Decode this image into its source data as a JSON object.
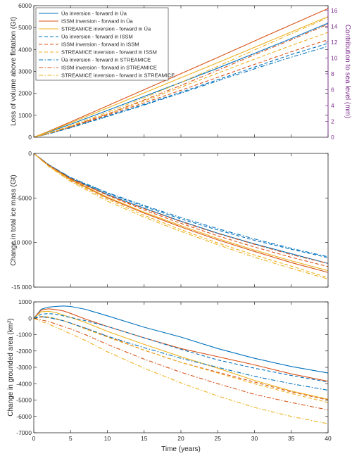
{
  "colors": {
    "ua": "#0072bd",
    "issm": "#d95319",
    "streamice": "#edb120",
    "sealevel_axis": "#7e2f8e"
  },
  "chart_data": [
    {
      "type": "line",
      "panel": "top",
      "xlabel": "",
      "ylabel": "Loss of volume above flotation (Gt)",
      "xlim": [
        0,
        40
      ],
      "ylim": [
        0,
        6000
      ],
      "xticks": [
        0,
        5,
        10,
        15,
        20,
        25,
        30,
        35,
        40
      ],
      "yticks": [
        0,
        1000,
        2000,
        3000,
        4000,
        5000,
        6000
      ],
      "ytick_labels": [
        "0",
        "1000",
        "2000",
        "3000",
        "4000",
        "5000",
        "6000"
      ],
      "y2label": "Contribution to sea level (mm)",
      "y2lim": [
        0,
        16.6
      ],
      "y2ticks": [
        0,
        2,
        4,
        6,
        8,
        10,
        12,
        14,
        16
      ],
      "legend_placement": "top-left",
      "x": [
        0,
        2,
        5,
        10,
        15,
        20,
        25,
        30,
        35,
        40
      ],
      "series": [
        {
          "name": "Úa inversion - forward in Úa",
          "color": "ua",
          "dash": "solid",
          "values": [
            0,
            230,
            590,
            1220,
            1860,
            2500,
            3150,
            3820,
            4500,
            5200
          ]
        },
        {
          "name": "ISSM inversion - forward in Úa",
          "color": "issm",
          "dash": "solid",
          "values": [
            0,
            270,
            700,
            1430,
            2170,
            2900,
            3640,
            4390,
            5130,
            5870
          ]
        },
        {
          "name": "STREAMICE inversion - forward in Úa",
          "color": "streamice",
          "dash": "solid",
          "values": [
            0,
            250,
            650,
            1330,
            2020,
            2710,
            3400,
            4100,
            4800,
            5500
          ]
        },
        {
          "name": "Úa inversion - forward in ISSM",
          "color": "ua",
          "dash": "dashed",
          "values": [
            0,
            160,
            450,
            970,
            1500,
            2050,
            2620,
            3200,
            3770,
            4280
          ]
        },
        {
          "name": "ISSM inversion - forward in ISSM",
          "color": "issm",
          "dash": "dashed",
          "values": [
            0,
            170,
            470,
            1010,
            1570,
            2140,
            2730,
            3320,
            3900,
            4450
          ]
        },
        {
          "name": "STREAMICE inversion - forward in ISSM",
          "color": "streamice",
          "dash": "dashed",
          "values": [
            0,
            180,
            490,
            1060,
            1650,
            2280,
            2920,
            3560,
            4180,
            4780
          ]
        },
        {
          "name": "Úa inversion - forward in STREAMICE",
          "color": "ua",
          "dash": "dashdot",
          "values": [
            0,
            150,
            430,
            940,
            1470,
            2010,
            2570,
            3120,
            3650,
            4150
          ]
        },
        {
          "name": "ISSM inversion - forward in STREAMICE",
          "color": "issm",
          "dash": "dashdot",
          "values": [
            0,
            170,
            480,
            1060,
            1700,
            2360,
            3050,
            3760,
            4440,
            5150
          ]
        },
        {
          "name": "STREAMICE inversion - forward in STREAMICE",
          "color": "streamice",
          "dash": "dashdot",
          "values": [
            0,
            180,
            520,
            1140,
            1800,
            2500,
            3230,
            3980,
            4720,
            5450
          ]
        }
      ]
    },
    {
      "type": "line",
      "panel": "middle",
      "xlabel": "",
      "ylabel": "Change in total ice mass (Gt)",
      "xlim": [
        0,
        40
      ],
      "ylim": [
        -15000,
        0
      ],
      "xticks": [
        0,
        5,
        10,
        15,
        20,
        25,
        30,
        35,
        40
      ],
      "yticks": [
        -15000,
        -10000,
        -5000,
        0
      ],
      "ytick_labels": [
        "-15 000",
        "-10 000",
        "-5000",
        "0"
      ],
      "x": [
        0,
        2,
        5,
        10,
        15,
        20,
        25,
        30,
        35,
        40
      ],
      "series": [
        {
          "color": "ua",
          "dash": "solid",
          "values": [
            0,
            -1300,
            -2800,
            -4600,
            -6150,
            -7600,
            -8950,
            -10150,
            -11250,
            -12350
          ]
        },
        {
          "color": "issm",
          "dash": "solid",
          "values": [
            0,
            -1350,
            -2950,
            -5000,
            -6700,
            -8250,
            -9700,
            -11000,
            -12250,
            -13350
          ]
        },
        {
          "color": "streamice",
          "dash": "solid",
          "values": [
            0,
            -1350,
            -2900,
            -4900,
            -6600,
            -8100,
            -9550,
            -10850,
            -12050,
            -13150
          ]
        },
        {
          "color": "ua",
          "dash": "dashed",
          "values": [
            0,
            -1250,
            -2750,
            -4450,
            -5950,
            -7350,
            -8600,
            -9750,
            -10750,
            -11700
          ]
        },
        {
          "color": "issm",
          "dash": "dashed",
          "values": [
            0,
            -1300,
            -2850,
            -4700,
            -6350,
            -7850,
            -9250,
            -10500,
            -11650,
            -12700
          ]
        },
        {
          "color": "streamice",
          "dash": "dashed",
          "values": [
            0,
            -1400,
            -3050,
            -5150,
            -6950,
            -8550,
            -10050,
            -11400,
            -12650,
            -13950
          ]
        },
        {
          "color": "ua",
          "dash": "dashdot",
          "values": [
            0,
            -1250,
            -2700,
            -4400,
            -5850,
            -7200,
            -8450,
            -9600,
            -10650,
            -11600
          ]
        },
        {
          "color": "issm",
          "dash": "dashdot",
          "values": [
            0,
            -1300,
            -2800,
            -4650,
            -6200,
            -7650,
            -9000,
            -10200,
            -11350,
            -12350
          ]
        },
        {
          "color": "streamice",
          "dash": "dashdot",
          "values": [
            0,
            -1450,
            -3150,
            -5350,
            -7150,
            -8750,
            -10250,
            -11650,
            -12900,
            -14100
          ]
        }
      ]
    },
    {
      "type": "line",
      "panel": "bottom",
      "xlabel": "Time (years)",
      "ylabel": "Change in grounded area (km²)",
      "xlim": [
        0,
        40
      ],
      "ylim": [
        -7000,
        1000
      ],
      "xticks": [
        0,
        5,
        10,
        15,
        20,
        25,
        30,
        35,
        40
      ],
      "xtick_labels": [
        "0",
        "5",
        "10",
        "15",
        "20",
        "25",
        "30",
        "35",
        "40"
      ],
      "yticks": [
        -7000,
        -6000,
        -5000,
        -4000,
        -3000,
        -2000,
        -1000,
        0,
        1000
      ],
      "ytick_labels": [
        "-7000",
        "-6000",
        "-5000",
        "-4000",
        "-3000",
        "-2000",
        "-1000",
        "0",
        "1000"
      ],
      "x": [
        0,
        1,
        2,
        3,
        4,
        5,
        7,
        10,
        15,
        20,
        25,
        30,
        35,
        40
      ],
      "series": [
        {
          "color": "ua",
          "dash": "solid",
          "values": [
            0,
            550,
            680,
            720,
            750,
            720,
            550,
            150,
            -550,
            -1150,
            -1850,
            -2450,
            -2950,
            -3350
          ]
        },
        {
          "color": "issm",
          "dash": "solid",
          "values": [
            0,
            500,
            580,
            530,
            450,
            300,
            -50,
            -500,
            -1200,
            -1850,
            -2350,
            -2850,
            -3400,
            -3850
          ]
        },
        {
          "color": "streamice",
          "dash": "solid",
          "values": [
            0,
            400,
            430,
            350,
            200,
            50,
            -250,
            -800,
            -1600,
            -2350,
            -3050,
            -3800,
            -4450,
            -4950
          ]
        },
        {
          "color": "ua",
          "dash": "dashed",
          "values": [
            0,
            250,
            280,
            250,
            150,
            50,
            -150,
            -500,
            -1200,
            -1900,
            -2550,
            -3050,
            -3500,
            -3900
          ]
        },
        {
          "color": "issm",
          "dash": "dashed",
          "values": [
            0,
            80,
            40,
            -50,
            -150,
            -300,
            -600,
            -1100,
            -1950,
            -2700,
            -3300,
            -3900,
            -4500,
            -5000
          ]
        },
        {
          "color": "streamice",
          "dash": "dashed",
          "values": [
            0,
            120,
            80,
            -20,
            -150,
            -300,
            -650,
            -1150,
            -1950,
            -2700,
            -3350,
            -4000,
            -4600,
            -5150
          ]
        },
        {
          "color": "ua",
          "dash": "dashdot",
          "values": [
            0,
            100,
            50,
            -50,
            -150,
            -300,
            -600,
            -1100,
            -1800,
            -2450,
            -3000,
            -3550,
            -4000,
            -4400
          ]
        },
        {
          "color": "issm",
          "dash": "dashdot",
          "values": [
            0,
            -100,
            -200,
            -350,
            -500,
            -650,
            -1000,
            -1600,
            -2500,
            -3300,
            -4000,
            -4650,
            -5150,
            -5600
          ]
        },
        {
          "color": "streamice",
          "dash": "dashdot",
          "values": [
            0,
            -200,
            -350,
            -550,
            -750,
            -950,
            -1350,
            -2050,
            -3050,
            -3950,
            -4750,
            -5450,
            -6000,
            -6450
          ]
        }
      ]
    }
  ]
}
